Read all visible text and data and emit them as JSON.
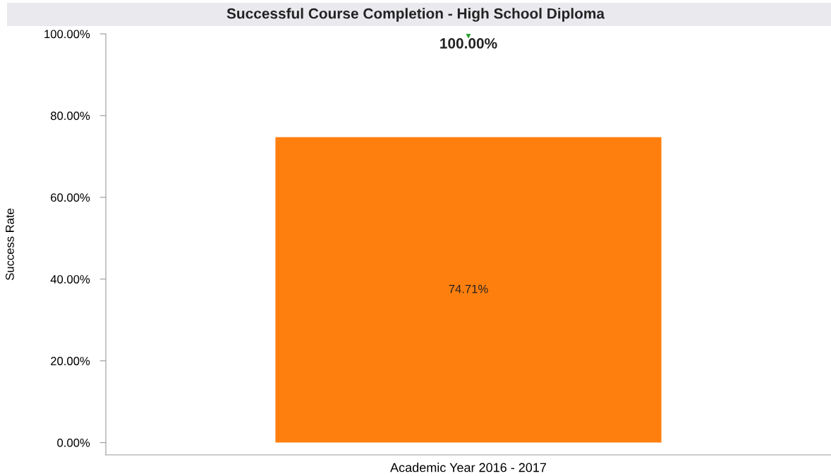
{
  "chart_data": {
    "type": "bar",
    "title": "Successful Course Completion - High School Diploma",
    "ylabel": "Success Rate",
    "categories": [
      "Academic Year 2016 - 2017"
    ],
    "series": [
      {
        "color": "#ff7f0e",
        "values": [
          74.71
        ],
        "value_labels": [
          "74.71%"
        ]
      },
      {
        "type": "scatter",
        "color": "#2ca02c",
        "values": [
          100
        ],
        "value_labels": [
          "100.00%"
        ],
        "marker": "triangle"
      }
    ],
    "ylim": [
      -3,
      100
    ],
    "yticks": [
      {
        "value": 0,
        "label": "0.00%"
      },
      {
        "value": 20,
        "label": "20.00%"
      },
      {
        "value": 40,
        "label": "40.00%"
      },
      {
        "value": 60,
        "label": "60.00%"
      },
      {
        "value": 80,
        "label": "80.00%"
      },
      {
        "value": 100,
        "label": "100.00%"
      }
    ],
    "grid": false,
    "legend": false
  }
}
